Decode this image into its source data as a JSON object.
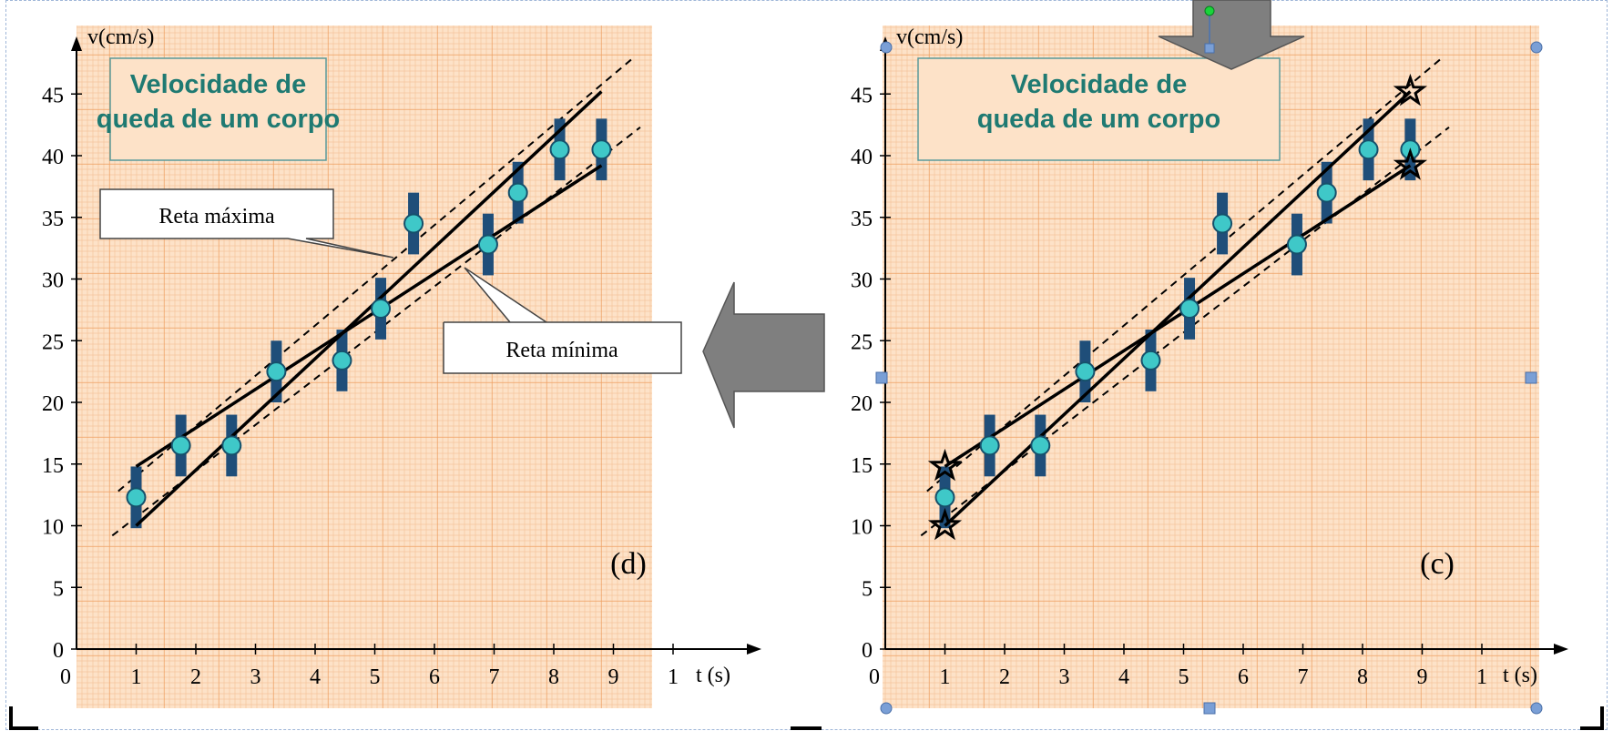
{
  "colors": {
    "paper": "#fde2c8",
    "grid_minor": "#f6c59c",
    "grid_major": "#ef9f60",
    "errorbar": "#1f4e79",
    "point_fill": "#3fc8c8",
    "point_stroke": "#16506b",
    "title_text": "#1f7a72",
    "title_border": "#5b9a9a",
    "arrow_fill": "#7f7f7f",
    "handle_blue": "#7a9fd6",
    "handle_green": "#19d43a"
  },
  "chart_data": [
    {
      "panel_label": "(d)",
      "type": "scatter",
      "title_lines": [
        "Velocidade de",
        "queda de um corpo"
      ],
      "ylabel": "v(cm/s)",
      "xlabel": "t (s)",
      "x_ticks": [
        "0",
        "1",
        "2",
        "3",
        "4",
        "5",
        "6",
        "7",
        "8",
        "9",
        "1"
      ],
      "y_ticks": [
        "0",
        "5",
        "10",
        "15",
        "20",
        "25",
        "30",
        "35",
        "40",
        "45"
      ],
      "xlim": [
        0,
        10.3
      ],
      "ylim": [
        0,
        47
      ],
      "points": [
        {
          "x": 1.0,
          "y": 12.3,
          "err": 2.5
        },
        {
          "x": 1.75,
          "y": 16.5,
          "err": 2.5
        },
        {
          "x": 2.6,
          "y": 16.5,
          "err": 2.5
        },
        {
          "x": 3.35,
          "y": 22.5,
          "err": 2.5
        },
        {
          "x": 4.45,
          "y": 23.4,
          "err": 2.5
        },
        {
          "x": 5.1,
          "y": 27.6,
          "err": 2.5
        },
        {
          "x": 5.65,
          "y": 34.5,
          "err": 2.5
        },
        {
          "x": 6.9,
          "y": 32.8,
          "err": 2.5
        },
        {
          "x": 7.4,
          "y": 37.0,
          "err": 2.5
        },
        {
          "x": 8.1,
          "y": 40.5,
          "err": 2.5
        },
        {
          "x": 8.8,
          "y": 40.5,
          "err": 2.5
        }
      ],
      "dashed_lines": [
        {
          "x1": 0.7,
          "y1": 12.8,
          "x2": 9.35,
          "y2": 48.0
        },
        {
          "x1": 0.6,
          "y1": 9.2,
          "x2": 9.45,
          "y2": 42.3
        }
      ],
      "solid_lines": [
        {
          "x1": 1.0,
          "y1": 10.0,
          "x2": 8.8,
          "y2": 45.2
        },
        {
          "x1": 1.0,
          "y1": 14.8,
          "x2": 8.8,
          "y2": 39.2
        }
      ],
      "callouts": [
        "Reta máxima",
        "Reta mínima"
      ]
    },
    {
      "panel_label": "(c)",
      "type": "scatter",
      "title_lines": [
        "Velocidade de",
        "queda de um corpo"
      ],
      "ylabel": "v(cm/s)",
      "xlabel": "t (s)",
      "x_ticks": [
        "0",
        "1",
        "2",
        "3",
        "4",
        "5",
        "6",
        "7",
        "8",
        "9",
        "1"
      ],
      "y_ticks": [
        "0",
        "5",
        "10",
        "15",
        "20",
        "25",
        "30",
        "35",
        "40",
        "45"
      ],
      "xlim": [
        0,
        10.3
      ],
      "ylim": [
        0,
        47
      ],
      "points": [
        {
          "x": 1.0,
          "y": 12.3,
          "err": 2.5
        },
        {
          "x": 1.75,
          "y": 16.5,
          "err": 2.5
        },
        {
          "x": 2.6,
          "y": 16.5,
          "err": 2.5
        },
        {
          "x": 3.35,
          "y": 22.5,
          "err": 2.5
        },
        {
          "x": 4.45,
          "y": 23.4,
          "err": 2.5
        },
        {
          "x": 5.1,
          "y": 27.6,
          "err": 2.5
        },
        {
          "x": 5.65,
          "y": 34.5,
          "err": 2.5
        },
        {
          "x": 6.9,
          "y": 32.8,
          "err": 2.5
        },
        {
          "x": 7.4,
          "y": 37.0,
          "err": 2.5
        },
        {
          "x": 8.1,
          "y": 40.5,
          "err": 2.5
        },
        {
          "x": 8.8,
          "y": 40.5,
          "err": 2.5
        }
      ],
      "dashed_lines": [
        {
          "x1": 0.7,
          "y1": 12.8,
          "x2": 9.35,
          "y2": 48.0
        },
        {
          "x1": 0.6,
          "y1": 9.2,
          "x2": 9.45,
          "y2": 42.3
        }
      ],
      "solid_lines": [
        {
          "x1": 1.0,
          "y1": 10.0,
          "x2": 8.8,
          "y2": 45.2
        },
        {
          "x1": 1.0,
          "y1": 14.8,
          "x2": 8.8,
          "y2": 39.2
        }
      ],
      "stars": [
        {
          "x": 1.0,
          "y": 10.0
        },
        {
          "x": 1.0,
          "y": 14.8
        },
        {
          "x": 8.8,
          "y": 45.2
        },
        {
          "x": 8.8,
          "y": 39.2
        }
      ]
    }
  ]
}
